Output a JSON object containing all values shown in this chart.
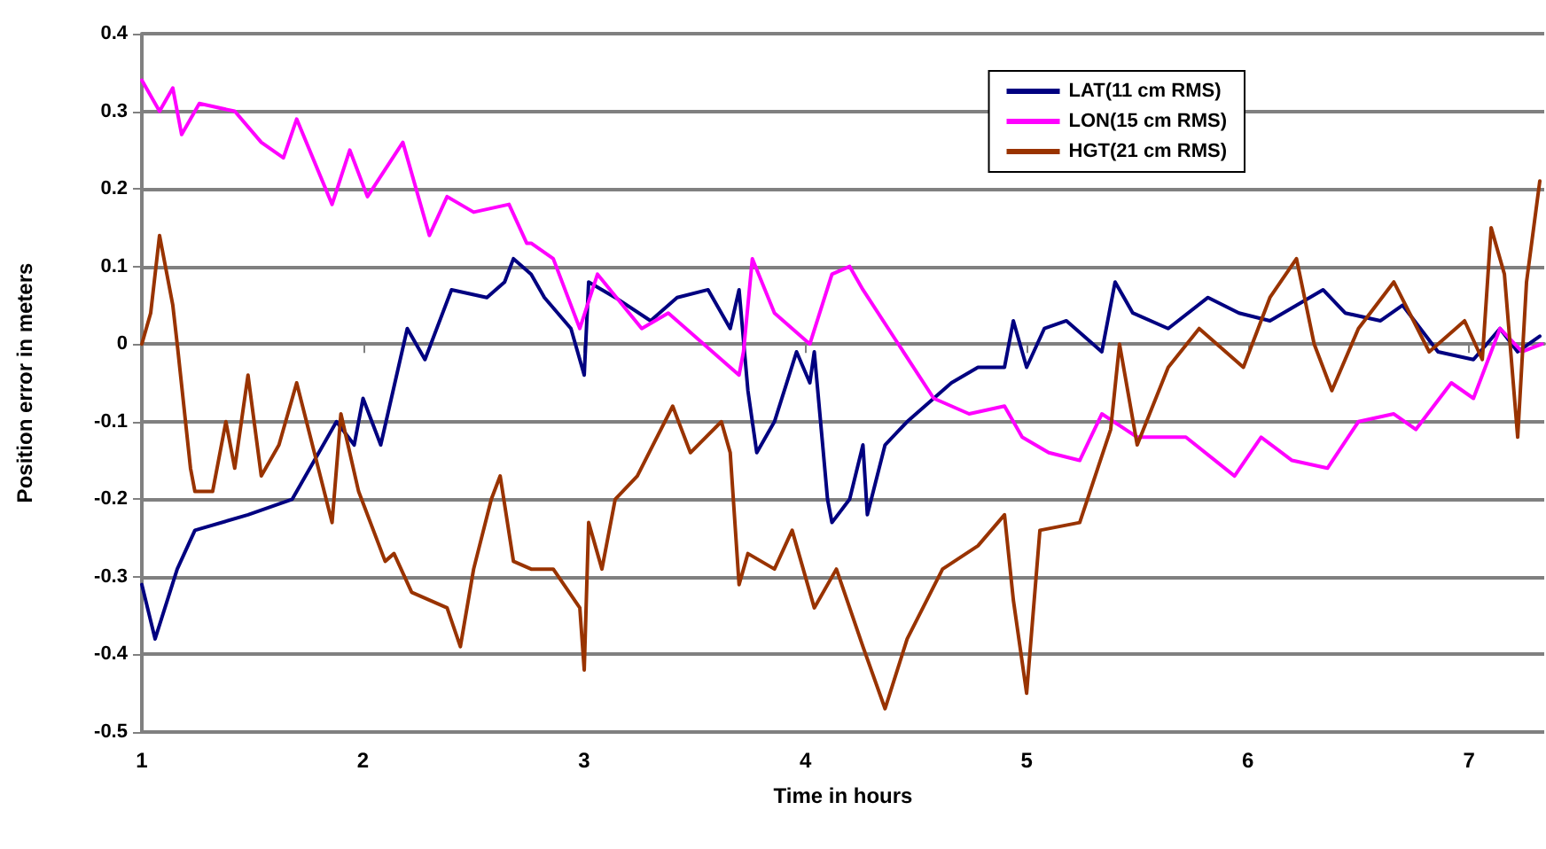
{
  "chart_data": {
    "type": "line",
    "xlabel": "Time in hours",
    "ylabel": "Position error in meters",
    "xlim": [
      1,
      7.34
    ],
    "xticks": [
      1,
      2,
      3,
      4,
      5,
      6,
      7
    ],
    "ylim": [
      -0.5,
      0.4
    ],
    "yticks": [
      -0.5,
      -0.4,
      -0.3,
      -0.2,
      -0.1,
      0,
      0.1,
      0.2,
      0.3,
      0.4
    ],
    "grid": "y",
    "legend": "top right",
    "marker": "none",
    "line_style": "solid",
    "series": [
      {
        "name": "LAT(11 cm RMS)",
        "color": "#000080",
        "x": [
          1.0,
          1.06,
          1.16,
          1.24,
          1.48,
          1.68,
          1.76,
          1.88,
          1.96,
          2.0,
          2.08,
          2.2,
          2.28,
          2.4,
          2.56,
          2.64,
          2.68,
          2.76,
          2.82,
          2.94,
          3.0,
          3.02,
          3.14,
          3.3,
          3.42,
          3.56,
          3.66,
          3.7,
          3.74,
          3.78,
          3.86,
          3.96,
          4.02,
          4.04,
          4.1,
          4.12,
          4.2,
          4.26,
          4.28,
          4.36,
          4.46,
          4.58,
          4.66,
          4.78,
          4.9,
          4.94,
          5.0,
          5.08,
          5.18,
          5.34,
          5.4,
          5.48,
          5.64,
          5.82,
          5.96,
          6.1,
          6.34,
          6.44,
          6.6,
          6.7,
          6.86,
          7.02,
          7.14,
          7.22,
          7.32
        ],
        "values": [
          -0.31,
          -0.38,
          -0.29,
          -0.24,
          -0.22,
          -0.2,
          -0.16,
          -0.1,
          -0.13,
          -0.07,
          -0.13,
          0.02,
          -0.02,
          0.07,
          0.06,
          0.08,
          0.11,
          0.09,
          0.06,
          0.02,
          -0.04,
          0.08,
          0.06,
          0.03,
          0.06,
          0.07,
          0.02,
          0.07,
          -0.06,
          -0.14,
          -0.1,
          -0.01,
          -0.05,
          -0.01,
          -0.2,
          -0.23,
          -0.2,
          -0.13,
          -0.22,
          -0.13,
          -0.1,
          -0.07,
          -0.05,
          -0.03,
          -0.03,
          0.03,
          -0.03,
          0.02,
          0.03,
          -0.01,
          0.08,
          0.04,
          0.02,
          0.06,
          0.04,
          0.03,
          0.07,
          0.04,
          0.03,
          0.05,
          -0.01,
          -0.02,
          0.02,
          -0.01,
          0.01
        ]
      },
      {
        "name": "LON(15 cm RMS)",
        "color": "#ff00ff",
        "x": [
          1.0,
          1.08,
          1.14,
          1.18,
          1.26,
          1.42,
          1.54,
          1.64,
          1.7,
          1.86,
          1.94,
          2.02,
          2.18,
          2.3,
          2.38,
          2.5,
          2.66,
          2.74,
          2.76,
          2.86,
          2.98,
          3.06,
          3.26,
          3.38,
          3.54,
          3.7,
          3.72,
          3.76,
          3.86,
          4.02,
          4.12,
          4.2,
          4.26,
          4.42,
          4.58,
          4.74,
          4.9,
          4.98,
          5.1,
          5.24,
          5.34,
          5.5,
          5.72,
          5.94,
          6.06,
          6.2,
          6.36,
          6.5,
          6.66,
          6.76,
          6.92,
          7.02,
          7.14,
          7.24,
          7.33
        ],
        "values": [
          0.34,
          0.3,
          0.33,
          0.27,
          0.31,
          0.3,
          0.26,
          0.24,
          0.29,
          0.18,
          0.25,
          0.19,
          0.26,
          0.14,
          0.19,
          0.17,
          0.18,
          0.13,
          0.13,
          0.11,
          0.02,
          0.09,
          0.02,
          0.04,
          0.0,
          -0.04,
          -0.01,
          0.11,
          0.04,
          0.0,
          0.09,
          0.1,
          0.07,
          0.0,
          -0.07,
          -0.09,
          -0.08,
          -0.12,
          -0.14,
          -0.15,
          -0.09,
          -0.12,
          -0.12,
          -0.17,
          -0.12,
          -0.15,
          -0.16,
          -0.1,
          -0.09,
          -0.11,
          -0.05,
          -0.07,
          0.02,
          -0.01,
          0.0
        ]
      },
      {
        "name": "HGT(21 cm RMS)",
        "color": "#993300",
        "x": [
          1.0,
          1.04,
          1.08,
          1.14,
          1.16,
          1.22,
          1.24,
          1.32,
          1.38,
          1.42,
          1.48,
          1.54,
          1.62,
          1.7,
          1.78,
          1.86,
          1.9,
          1.98,
          2.1,
          2.14,
          2.22,
          2.38,
          2.44,
          2.5,
          2.58,
          2.62,
          2.68,
          2.76,
          2.86,
          2.98,
          3.0,
          3.02,
          3.08,
          3.14,
          3.24,
          3.4,
          3.48,
          3.62,
          3.66,
          3.7,
          3.74,
          3.86,
          3.94,
          4.04,
          4.14,
          4.26,
          4.36,
          4.46,
          4.62,
          4.78,
          4.9,
          4.94,
          5.0,
          5.06,
          5.24,
          5.38,
          5.42,
          5.5,
          5.64,
          5.78,
          5.98,
          6.1,
          6.22,
          6.3,
          6.38,
          6.5,
          6.66,
          6.82,
          6.98,
          7.06,
          7.1,
          7.16,
          7.22,
          7.26,
          7.32
        ],
        "values": [
          0.0,
          0.04,
          0.14,
          0.05,
          0.0,
          -0.16,
          -0.19,
          -0.19,
          -0.1,
          -0.16,
          -0.04,
          -0.17,
          -0.13,
          -0.05,
          -0.14,
          -0.23,
          -0.09,
          -0.19,
          -0.28,
          -0.27,
          -0.32,
          -0.34,
          -0.39,
          -0.29,
          -0.2,
          -0.17,
          -0.28,
          -0.29,
          -0.29,
          -0.34,
          -0.42,
          -0.23,
          -0.29,
          -0.2,
          -0.17,
          -0.08,
          -0.14,
          -0.1,
          -0.14,
          -0.31,
          -0.27,
          -0.29,
          -0.24,
          -0.34,
          -0.29,
          -0.39,
          -0.47,
          -0.38,
          -0.29,
          -0.26,
          -0.22,
          -0.33,
          -0.45,
          -0.24,
          -0.23,
          -0.11,
          0.0,
          -0.13,
          -0.03,
          0.02,
          -0.03,
          0.06,
          0.11,
          0.0,
          -0.06,
          0.02,
          0.08,
          -0.01,
          0.03,
          -0.02,
          0.15,
          0.09,
          -0.12,
          0.08,
          0.21
        ]
      }
    ]
  }
}
